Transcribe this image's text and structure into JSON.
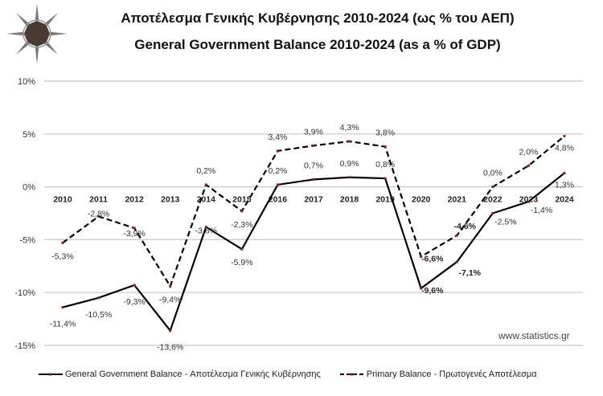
{
  "header": {
    "title_gr": "Αποτέλεσμα Γενικής Κυβέρνησης 2010-2024 (ως % του ΑΕΠ)",
    "title_en": "General Government Balance 2010-2024 (as a % of GDP)",
    "logo_icon": "elstat-compass-logo"
  },
  "source": "www.statistics.gr",
  "chart_data": {
    "type": "line",
    "title": "General Government Balance 2010-2024 (as a % of GDP)",
    "subtitle": "Αποτέλεσμα Γενικής Κυβέρνησης 2010-2024 (ως % του ΑΕΠ)",
    "xlabel": "",
    "ylabel": "",
    "ylim": [
      -15,
      10
    ],
    "yticks": [
      "10%",
      "5%",
      "0%",
      "-5%",
      "-10%",
      "-15%"
    ],
    "grid": true,
    "legend_position": "bottom",
    "categories": [
      "2010",
      "2011",
      "2012",
      "2013",
      "2014",
      "2015",
      "2016",
      "2017",
      "2018",
      "2019",
      "2020",
      "2021",
      "2022",
      "2023",
      "2024"
    ],
    "series": [
      {
        "name": "General Government Balance - Αποτέλεσμα Γενικής Κυβέρνησης",
        "style": "solid",
        "values": [
          -11.4,
          -10.5,
          -9.3,
          -13.6,
          -3.8,
          -5.9,
          0.2,
          0.7,
          0.9,
          0.8,
          -9.6,
          -7.1,
          -2.5,
          -1.4,
          1.3
        ],
        "labels": [
          "-11,4%",
          "-10,5%",
          "-9,3%",
          "-13,6%",
          "-3,8%",
          "-5,9%",
          "0,2%",
          "0,7%",
          "0,9%",
          "0,8%",
          "-9,6%",
          "-7,1%",
          "-2,5%",
          "-1,4%",
          "1,3%"
        ]
      },
      {
        "name": "Primary Balance - Πρωτογενές Αποτέλεσμα",
        "style": "dashed",
        "values": [
          -5.3,
          -2.8,
          -3.9,
          -9.4,
          0.2,
          -2.3,
          3.4,
          3.9,
          4.3,
          3.8,
          -6.6,
          -4.6,
          0.0,
          2.0,
          4.8
        ],
        "labels": [
          "-5,3%",
          "-2,8%",
          "-3,9%",
          "-9,4%",
          "0,2%",
          "-2,3%",
          "3,4%",
          "3,9%",
          "4,3%",
          "3,8%",
          "-6,6%",
          "-4,6%",
          "0,0%",
          "2,0%",
          "4,8%"
        ]
      }
    ],
    "colors": {
      "line": "#000000",
      "marker": "#7a2a2a",
      "grid": "#c8c8c8"
    }
  }
}
